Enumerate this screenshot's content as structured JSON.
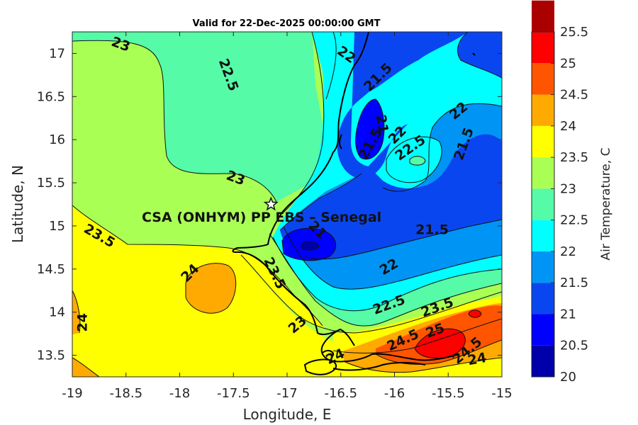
{
  "title": "Valid for 22-Dec-2025 00:00:00 GMT",
  "map": {
    "xlabel": "Longitude, E",
    "ylabel": "Latitude, N",
    "xlim": [
      -19,
      -15
    ],
    "ylim": [
      13.25,
      17.25
    ],
    "xticks": [
      "-19",
      "-18.5",
      "-18",
      "-17.5",
      "-17",
      "-16.5",
      "-16",
      "-15.5",
      "-15"
    ],
    "yticks": [
      "17",
      "16.5",
      "16",
      "15.5",
      "15",
      "14.5",
      "14",
      "13.5"
    ],
    "site_label": "CSA (ONHYM) PP EBS – Senegal",
    "site_marker": "star-icon",
    "site_location": {
      "lon": -17.15,
      "lat": 15.25
    }
  },
  "colorbar": {
    "label": "Air Temperature, C",
    "ticks": [
      "20",
      "20.5",
      "21",
      "21.5",
      "22",
      "22.5",
      "23",
      "23.5",
      "24",
      "24.5",
      "25",
      "25.5"
    ],
    "colors": [
      "#0000aa",
      "#0000ff",
      "#0a46f0",
      "#0094f5",
      "#00ffff",
      "#55fba6",
      "#aaff55",
      "#ffff00",
      "#ffaa00",
      "#ff5500",
      "#ff0000",
      "#aa0000"
    ]
  },
  "contour_labels": [
    {
      "text": "23",
      "lon": -18.55,
      "lat": 17.1,
      "rot": 20
    },
    {
      "text": "22.5",
      "lon": -17.55,
      "lat": 16.75,
      "rot": 70
    },
    {
      "text": "22",
      "lon": -16.45,
      "lat": 16.98,
      "rot": 35
    },
    {
      "text": "21.5",
      "lon": -16.15,
      "lat": 16.72,
      "rot": -45
    },
    {
      "text": "21",
      "lon": -16.12,
      "lat": 16.18,
      "rot": 80
    },
    {
      "text": "21.5",
      "lon": -16.22,
      "lat": 15.95,
      "rot": -60
    },
    {
      "text": "22",
      "lon": -15.97,
      "lat": 16.05,
      "rot": -45
    },
    {
      "text": "22.5",
      "lon": -15.85,
      "lat": 15.9,
      "rot": -35
    },
    {
      "text": "22",
      "lon": -15.4,
      "lat": 16.33,
      "rot": -40
    },
    {
      "text": "21.5",
      "lon": -15.35,
      "lat": 15.95,
      "rot": -70
    },
    {
      "text": "23",
      "lon": -17.48,
      "lat": 15.55,
      "rot": 20
    },
    {
      "text": "23.5",
      "lon": -18.75,
      "lat": 14.88,
      "rot": 30
    },
    {
      "text": "21",
      "lon": -16.72,
      "lat": 14.95,
      "rot": 45
    },
    {
      "text": "21.5",
      "lon": -15.65,
      "lat": 14.95,
      "rot": 0
    },
    {
      "text": "22",
      "lon": -16.05,
      "lat": 14.52,
      "rot": -30
    },
    {
      "text": "24",
      "lon": -17.9,
      "lat": 14.45,
      "rot": -45
    },
    {
      "text": "23.5",
      "lon": -17.12,
      "lat": 14.45,
      "rot": 65
    },
    {
      "text": "22.5",
      "lon": -16.05,
      "lat": 14.08,
      "rot": -20
    },
    {
      "text": "23.5",
      "lon": -15.6,
      "lat": 14.05,
      "rot": -20
    },
    {
      "text": "24",
      "lon": -18.9,
      "lat": 13.88,
      "rot": -90
    },
    {
      "text": "25",
      "lon": -15.62,
      "lat": 13.78,
      "rot": -20
    },
    {
      "text": "24.5",
      "lon": -15.92,
      "lat": 13.67,
      "rot": -25
    },
    {
      "text": "24",
      "lon": -16.55,
      "lat": 13.48,
      "rot": -25
    },
    {
      "text": "24.5",
      "lon": -15.32,
      "lat": 13.55,
      "rot": -40
    },
    {
      "text": "24",
      "lon": -15.23,
      "lat": 13.45,
      "rot": -10
    },
    {
      "text": "23",
      "lon": -16.9,
      "lat": 13.85,
      "rot": -40
    }
  ]
}
